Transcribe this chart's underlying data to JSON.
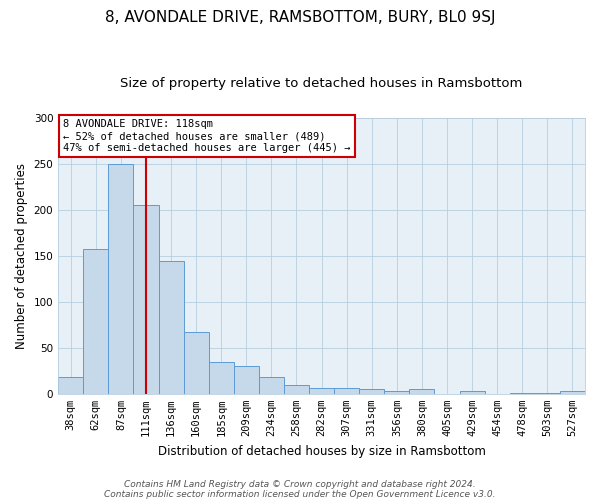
{
  "title": "8, AVONDALE DRIVE, RAMSBOTTOM, BURY, BL0 9SJ",
  "subtitle": "Size of property relative to detached houses in Ramsbottom",
  "xlabel": "Distribution of detached houses by size in Ramsbottom",
  "ylabel": "Number of detached properties",
  "footnote1": "Contains HM Land Registry data © Crown copyright and database right 2024.",
  "footnote2": "Contains public sector information licensed under the Open Government Licence v3.0.",
  "bin_labels": [
    "38sqm",
    "62sqm",
    "87sqm",
    "111sqm",
    "136sqm",
    "160sqm",
    "185sqm",
    "209sqm",
    "234sqm",
    "258sqm",
    "282sqm",
    "307sqm",
    "331sqm",
    "356sqm",
    "380sqm",
    "405sqm",
    "429sqm",
    "454sqm",
    "478sqm",
    "503sqm",
    "527sqm"
  ],
  "bar_values": [
    18,
    158,
    250,
    205,
    145,
    67,
    35,
    30,
    18,
    10,
    6,
    6,
    5,
    3,
    5,
    0,
    3,
    0,
    1,
    1,
    3
  ],
  "bar_color": "#c5d9ea",
  "bar_edge_color": "#5b9bd5",
  "bg_color": "#e8f0f7",
  "grid_color": "#b8cfe0",
  "annotation_box_text": "8 AVONDALE DRIVE: 118sqm\n← 52% of detached houses are smaller (489)\n47% of semi-detached houses are larger (445) →",
  "annotation_box_color": "#ffffff",
  "annotation_box_edge_color": "#cc0000",
  "vline_x": 3.0,
  "vline_color": "#cc0000",
  "ylim": [
    0,
    300
  ],
  "yticks": [
    0,
    50,
    100,
    150,
    200,
    250,
    300
  ],
  "title_fontsize": 11,
  "subtitle_fontsize": 9.5,
  "axis_label_fontsize": 8.5,
  "tick_fontsize": 7.5,
  "annotation_fontsize": 7.5,
  "footnote_fontsize": 6.5
}
